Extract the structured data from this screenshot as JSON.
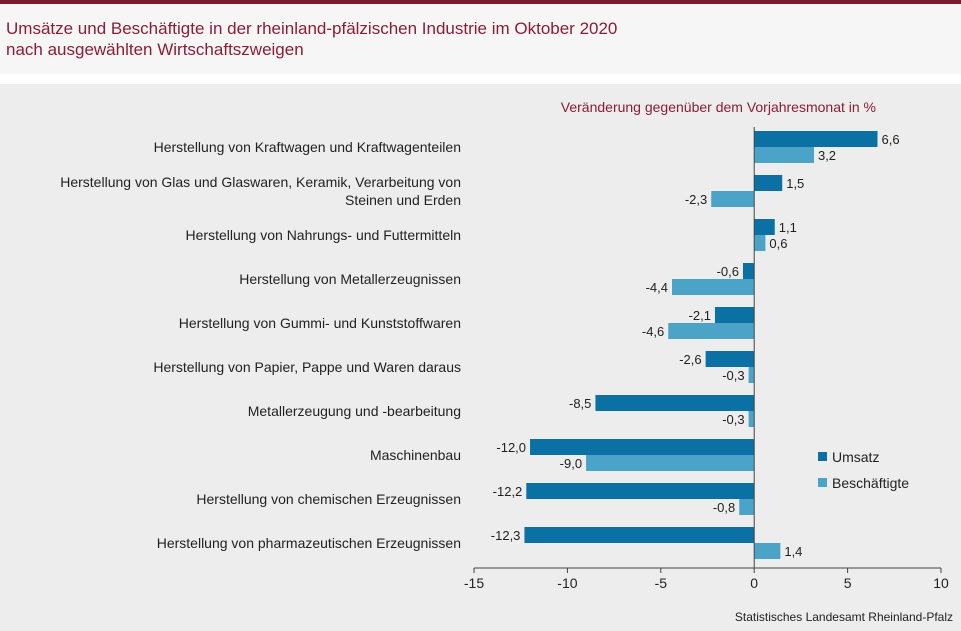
{
  "header": {
    "title_line1": "Umsätze und Beschäftigte in der rheinland-pfälzischen Industrie im Oktober 2020",
    "title_line2": "nach ausgewählten Wirtschaftszweigen"
  },
  "source": "Statistisches Landesamt Rheinland-Pfalz",
  "colors": {
    "umsatz": "#0b71a4",
    "beschaeftigte": "#4ca3c8",
    "title": "#8b1d35"
  },
  "chart_data": {
    "type": "bar",
    "orientation": "horizontal",
    "subtitle": "Veränderung gegenüber dem Vorjahresmonat in %",
    "categories": [
      [
        "Herstellung von Kraftwagen und Kraftwagenteilen"
      ],
      [
        "Herstellung von Glas und Glaswaren, Keramik, Verarbeitung von",
        "Steinen und Erden"
      ],
      [
        "Herstellung von Nahrungs- und Futtermitteln"
      ],
      [
        "Herstellung von Metallerzeugnissen"
      ],
      [
        "Herstellung von Gummi- und Kunststoffwaren"
      ],
      [
        "Herstellung von Papier, Pappe und Waren daraus"
      ],
      [
        "Metallerzeugung und -bearbeitung"
      ],
      [
        "Maschinenbau"
      ],
      [
        "Herstellung von chemischen Erzeugnissen"
      ],
      [
        "Herstellung von pharmazeutischen Erzeugnissen"
      ]
    ],
    "series": [
      {
        "name": "Umsatz",
        "values": [
          6.6,
          1.5,
          1.1,
          -0.6,
          -2.1,
          -2.6,
          -8.5,
          -12.0,
          -12.2,
          -12.3
        ],
        "labels": [
          "6,6",
          "1,5",
          "1,1",
          "-0,6",
          "-2,1",
          "-2,6",
          "-8,5",
          "-12,0",
          "-12,2",
          "-12,3"
        ]
      },
      {
        "name": "Beschäftigte",
        "values": [
          3.2,
          -2.3,
          0.6,
          -4.4,
          -4.6,
          -0.3,
          -0.3,
          -9.0,
          -0.8,
          1.4
        ],
        "labels": [
          "3,2",
          "-2,3",
          "0,6",
          "-4,4",
          "-4,6",
          "-0,3",
          "-0,3",
          "-9,0",
          "-0,8",
          "1,4"
        ]
      }
    ],
    "xlim": [
      -15,
      10
    ],
    "xticks": [
      -15,
      -10,
      -5,
      0,
      5,
      10
    ],
    "xtick_labels": [
      "-15",
      "-10",
      "-5",
      "0",
      "5",
      "10"
    ],
    "grid": false,
    "legend": "right"
  }
}
